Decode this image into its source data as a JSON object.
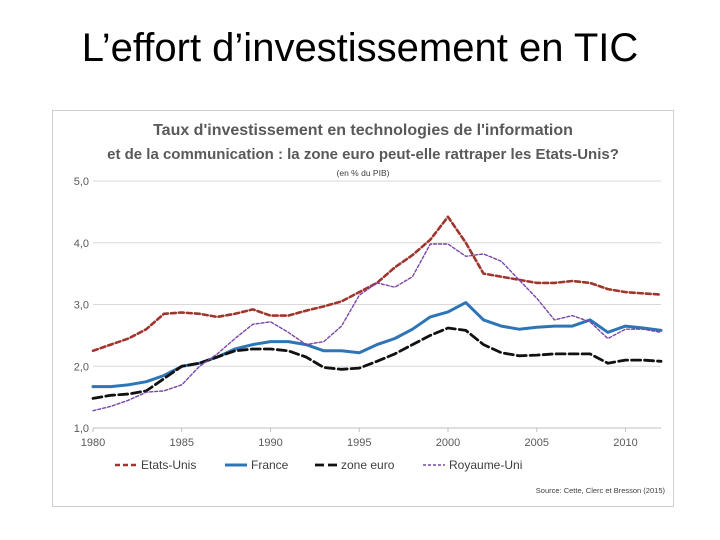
{
  "slide": {
    "title": "L’effort d’investissement en TIC"
  },
  "chart_data": {
    "type": "line",
    "title_line1": "Taux d'investissement en technologies de l'information",
    "title_line2": "et de la communication : la zone euro peut-elle rattraper les Etats-Unis?",
    "subtitle": "(en % du PIB)",
    "xlabel": "",
    "ylabel": "",
    "xlim": [
      1980,
      2012
    ],
    "ylim": [
      1.0,
      5.0
    ],
    "x_ticks": [
      "1980",
      "1985",
      "1990",
      "1995",
      "2000",
      "2005",
      "2010"
    ],
    "y_ticks": [
      "1,0",
      "2,0",
      "3,0",
      "4,0",
      "5,0"
    ],
    "grid": true,
    "legend_position": "bottom",
    "source": "Source: Cette, Clerc et Bresson (2015)",
    "x": [
      1980,
      1981,
      1982,
      1983,
      1984,
      1985,
      1986,
      1987,
      1988,
      1989,
      1990,
      1991,
      1992,
      1993,
      1994,
      1995,
      1996,
      1997,
      1998,
      1999,
      2000,
      2001,
      2002,
      2003,
      2004,
      2005,
      2006,
      2007,
      2008,
      2009,
      2010,
      2011,
      2012
    ],
    "series": [
      {
        "name": "Etats-Unis",
        "color": "#a0352d",
        "style": "dashed",
        "values": [
          2.25,
          2.35,
          2.45,
          2.6,
          2.85,
          2.87,
          2.85,
          2.8,
          2.85,
          2.92,
          2.82,
          2.82,
          2.9,
          2.97,
          3.05,
          3.2,
          3.35,
          3.6,
          3.8,
          4.05,
          4.42,
          4.0,
          3.5,
          3.45,
          3.4,
          3.35,
          3.35,
          3.38,
          3.35,
          3.25,
          3.2,
          3.18,
          3.16
        ]
      },
      {
        "name": "France",
        "color": "#2e75b6",
        "style": "solid",
        "values": [
          1.67,
          1.67,
          1.7,
          1.75,
          1.85,
          2.0,
          2.05,
          2.15,
          2.28,
          2.35,
          2.4,
          2.4,
          2.35,
          2.25,
          2.25,
          2.22,
          2.35,
          2.45,
          2.6,
          2.8,
          2.88,
          3.03,
          2.75,
          2.65,
          2.6,
          2.63,
          2.65,
          2.65,
          2.75,
          2.55,
          2.65,
          2.62,
          2.58
        ]
      },
      {
        "name": "zone euro",
        "color": "#111111",
        "style": "longdash",
        "values": [
          1.48,
          1.53,
          1.55,
          1.6,
          1.8,
          2.0,
          2.05,
          2.15,
          2.25,
          2.28,
          2.28,
          2.25,
          2.15,
          1.98,
          1.95,
          1.97,
          2.08,
          2.2,
          2.35,
          2.5,
          2.62,
          2.58,
          2.35,
          2.22,
          2.17,
          2.18,
          2.2,
          2.2,
          2.2,
          2.05,
          2.1,
          2.1,
          2.08
        ]
      },
      {
        "name": "Royaume-Uni",
        "color": "#7b45a8",
        "style": "dotted",
        "values": [
          1.28,
          1.35,
          1.45,
          1.58,
          1.6,
          1.7,
          2.0,
          2.2,
          2.45,
          2.68,
          2.72,
          2.55,
          2.35,
          2.4,
          2.65,
          3.15,
          3.35,
          3.28,
          3.45,
          3.98,
          3.98,
          3.78,
          3.82,
          3.7,
          3.4,
          3.1,
          2.75,
          2.82,
          2.72,
          2.45,
          2.6,
          2.6,
          2.55
        ]
      }
    ]
  }
}
